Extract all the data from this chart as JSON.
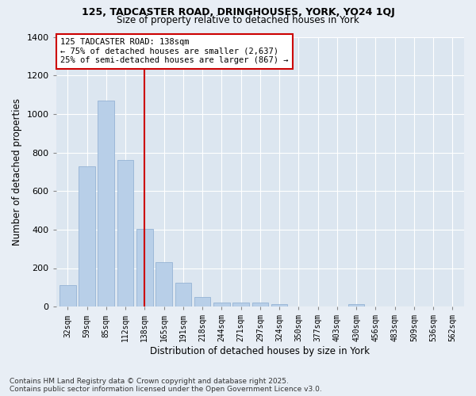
{
  "title": "125, TADCASTER ROAD, DRINGHOUSES, YORK, YO24 1QJ",
  "subtitle": "Size of property relative to detached houses in York",
  "xlabel": "Distribution of detached houses by size in York",
  "ylabel": "Number of detached properties",
  "annotation_title": "125 TADCASTER ROAD: 138sqm",
  "annotation_line1": "← 75% of detached houses are smaller (2,637)",
  "annotation_line2": "25% of semi-detached houses are larger (867) →",
  "categories": [
    "32sqm",
    "59sqm",
    "85sqm",
    "112sqm",
    "138sqm",
    "165sqm",
    "191sqm",
    "218sqm",
    "244sqm",
    "271sqm",
    "297sqm",
    "324sqm",
    "350sqm",
    "377sqm",
    "403sqm",
    "430sqm",
    "456sqm",
    "483sqm",
    "509sqm",
    "536sqm",
    "562sqm"
  ],
  "values": [
    110,
    730,
    1070,
    760,
    405,
    230,
    125,
    50,
    20,
    20,
    20,
    15,
    0,
    0,
    0,
    15,
    0,
    0,
    0,
    0,
    0
  ],
  "bar_color": "#b8cfe8",
  "highlight_color": "#cc0000",
  "highlight_index": 4,
  "background_color": "#e8eef5",
  "plot_bg_color": "#dce6f0",
  "ylim": [
    0,
    1400
  ],
  "yticks": [
    0,
    200,
    400,
    600,
    800,
    1000,
    1200,
    1400
  ],
  "footer_line1": "Contains HM Land Registry data © Crown copyright and database right 2025.",
  "footer_line2": "Contains public sector information licensed under the Open Government Licence v3.0."
}
